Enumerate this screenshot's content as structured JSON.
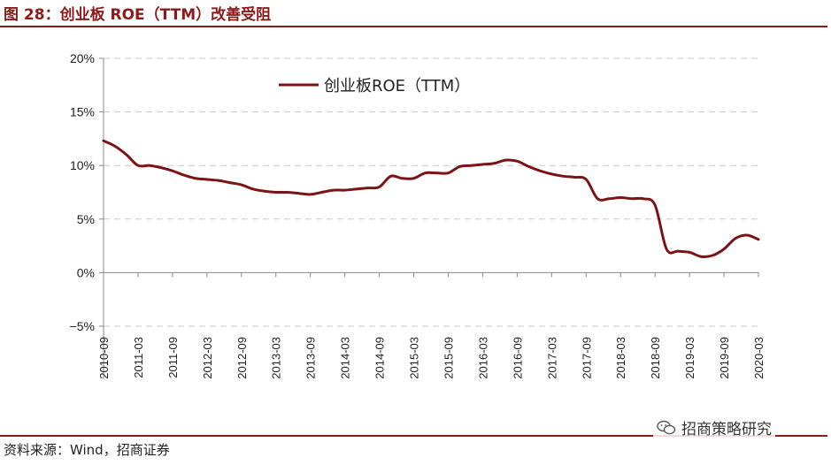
{
  "figure": {
    "title": "图 28：创业板 ROE（TTM）改善受阻",
    "source": "资料来源：Wind，招商证券",
    "watermark": "招商策略研究",
    "watermark_icon": "wechat-icon"
  },
  "colors": {
    "accent": "#8B1A1A",
    "series": "#7B1416",
    "grid": "#C8C8C8"
  },
  "chart_data": {
    "type": "line",
    "title": "",
    "xlabel": "",
    "ylabel": "",
    "ylim": [
      -5,
      20
    ],
    "yticks": [
      -5,
      0,
      5,
      10,
      15,
      20
    ],
    "ytick_labels": [
      "−5%",
      "0%",
      "5%",
      "10%",
      "15%",
      "20%"
    ],
    "grid": "horizontal dashed",
    "legend_position": "top-left",
    "x_tick_labels": [
      "2010-09",
      "2011-03",
      "2011-09",
      "2012-03",
      "2012-09",
      "2013-03",
      "2013-09",
      "2014-03",
      "2014-09",
      "2015-03",
      "2015-09",
      "2016-03",
      "2016-09",
      "2017-03",
      "2017-09",
      "2018-03",
      "2018-09",
      "2019-03",
      "2019-09",
      "2020-03"
    ],
    "series": [
      {
        "name": "创业板ROE（TTM）",
        "x": [
          "2010-09",
          "2010-11",
          "2011-01",
          "2011-03",
          "2011-05",
          "2011-07",
          "2011-09",
          "2011-11",
          "2012-01",
          "2012-03",
          "2012-05",
          "2012-07",
          "2012-09",
          "2012-11",
          "2013-01",
          "2013-03",
          "2013-05",
          "2013-07",
          "2013-09",
          "2013-11",
          "2014-01",
          "2014-03",
          "2014-05",
          "2014-07",
          "2014-09",
          "2014-11",
          "2015-01",
          "2015-03",
          "2015-05",
          "2015-07",
          "2015-09",
          "2015-11",
          "2016-01",
          "2016-03",
          "2016-05",
          "2016-07",
          "2016-09",
          "2016-11",
          "2017-01",
          "2017-03",
          "2017-05",
          "2017-07",
          "2017-09",
          "2017-11",
          "2018-01",
          "2018-03",
          "2018-05",
          "2018-07",
          "2018-09",
          "2018-11",
          "2019-01",
          "2019-03",
          "2019-05",
          "2019-07",
          "2019-09",
          "2019-11",
          "2020-01",
          "2020-03"
        ],
        "values": [
          12.3,
          11.8,
          11.0,
          10.0,
          10.0,
          9.8,
          9.5,
          9.1,
          8.8,
          8.7,
          8.6,
          8.4,
          8.2,
          7.8,
          7.6,
          7.5,
          7.5,
          7.4,
          7.3,
          7.5,
          7.7,
          7.7,
          7.8,
          7.9,
          8.0,
          9.0,
          8.8,
          8.8,
          9.3,
          9.3,
          9.3,
          9.9,
          10.0,
          10.1,
          10.2,
          10.5,
          10.4,
          9.9,
          9.5,
          9.2,
          9.0,
          8.9,
          8.7,
          6.9,
          6.9,
          7.0,
          6.9,
          6.9,
          6.3,
          2.2,
          2.0,
          1.9,
          1.5,
          1.6,
          2.2,
          3.2,
          3.5,
          3.1
        ]
      }
    ]
  }
}
